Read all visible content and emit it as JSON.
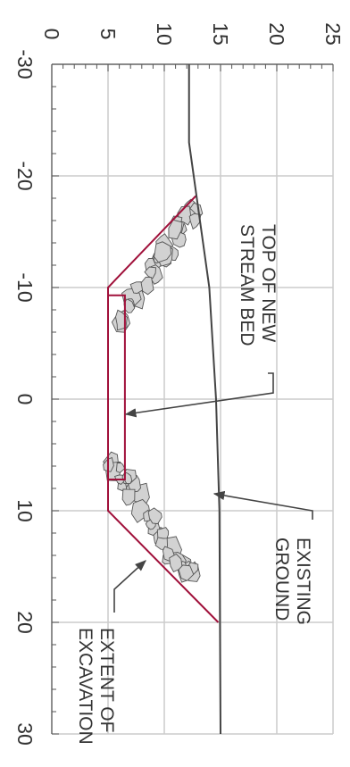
{
  "chart_data": {
    "type": "diagram-cross-section",
    "x_ticks": [
      "-30",
      "-20",
      "-10",
      "0",
      "10",
      "20",
      "30"
    ],
    "y_ticks": [
      "0",
      "5",
      "10",
      "15",
      "20",
      "25"
    ],
    "xlim": [
      -30,
      30
    ],
    "ylim": [
      0,
      25
    ],
    "grid": true,
    "existing_ground": [
      [
        -30,
        12.2
      ],
      [
        -23,
        12.2
      ],
      [
        -10,
        14.0
      ],
      [
        0,
        14.6
      ],
      [
        10,
        14.9
      ],
      [
        30,
        15.0
      ]
    ],
    "excavation": [
      [
        -18.2,
        12.8
      ],
      [
        -10,
        5.0
      ],
      [
        10,
        5.0
      ],
      [
        20,
        14.8
      ]
    ],
    "stream_bed": [
      [
        -9.3,
        6.5
      ],
      [
        7.2,
        6.5
      ]
    ],
    "annotations": {
      "top_of_new_stream_bed": [
        "TOP OF NEW",
        "STREAM BED"
      ],
      "existing_ground": [
        "EXISTING",
        "GROUND"
      ],
      "extent_of_excavation": [
        "EXTENT OF",
        "EXCAVATION"
      ]
    }
  },
  "colors": {
    "excavation": "#a0103a",
    "ground": "#444444",
    "grid": "#cccccc",
    "rock_fill": "#d2d2d2",
    "rock_stroke": "#555555"
  }
}
